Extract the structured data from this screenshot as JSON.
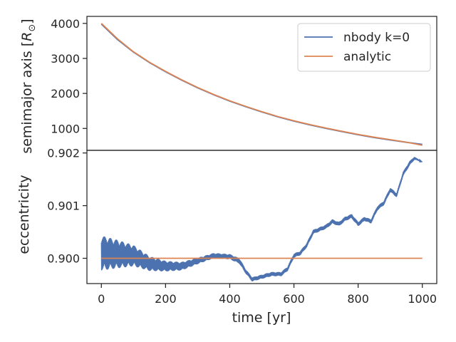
{
  "chart_data": [
    {
      "panel": "top",
      "type": "line",
      "ylabel_text": "semimajor axis [",
      "ylabel_symbol": "R",
      "ylabel_subscript": "⊙",
      "ylabel_close": "]",
      "xlim": [
        -45,
        1045
      ],
      "ylim": [
        375,
        4200
      ],
      "yticks": [
        1000,
        2000,
        3000,
        4000
      ],
      "ytick_labels": [
        "1000",
        "2000",
        "3000",
        "4000"
      ],
      "legend": {
        "position": "top-right",
        "entries": [
          "nbody k=0",
          "analytic"
        ]
      },
      "series": [
        {
          "name": "nbody k=0",
          "color": "#4c72b0",
          "x": [
            0,
            50,
            100,
            150,
            200,
            250,
            300,
            350,
            400,
            450,
            500,
            550,
            600,
            650,
            700,
            750,
            800,
            850,
            900,
            950,
            1000
          ],
          "y": [
            3980,
            3540,
            3180,
            2880,
            2620,
            2380,
            2160,
            1960,
            1780,
            1620,
            1470,
            1330,
            1210,
            1100,
            1000,
            910,
            820,
            740,
            670,
            605,
            545
          ]
        },
        {
          "name": "analytic",
          "color": "#dd8452",
          "x": [
            0,
            50,
            100,
            150,
            200,
            250,
            300,
            350,
            400,
            450,
            500,
            550,
            600,
            650,
            700,
            750,
            800,
            850,
            900,
            950,
            1000
          ],
          "y": [
            4000,
            3560,
            3190,
            2890,
            2630,
            2390,
            2170,
            1970,
            1790,
            1630,
            1480,
            1340,
            1220,
            1110,
            1010,
            920,
            830,
            750,
            680,
            610,
            520
          ]
        }
      ]
    },
    {
      "panel": "bottom",
      "type": "line",
      "xlabel": "time [yr]",
      "ylabel": "eccentricity",
      "xlim": [
        -45,
        1045
      ],
      "ylim": [
        0.89952,
        0.90205
      ],
      "xticks": [
        0,
        200,
        400,
        600,
        800,
        1000
      ],
      "xtick_labels": [
        "0",
        "200",
        "400",
        "600",
        "800",
        "1000"
      ],
      "yticks": [
        0.9,
        0.901,
        0.902
      ],
      "ytick_labels": [
        "0.900",
        "0.901",
        "0.902"
      ],
      "series": [
        {
          "name": "nbody k=0",
          "color": "#4c72b0",
          "x": [
            0,
            50,
            100,
            150,
            200,
            250,
            300,
            350,
            400,
            430,
            450,
            470,
            500,
            530,
            560,
            580,
            600,
            620,
            640,
            660,
            680,
            700,
            720,
            740,
            760,
            780,
            800,
            820,
            840,
            860,
            880,
            900,
            920,
            940,
            960,
            975,
            1000
          ],
          "y": [
            0.9001,
            0.90008,
            0.90005,
            0.8999,
            0.89985,
            0.89985,
            0.89995,
            0.90005,
            0.90003,
            0.89995,
            0.89975,
            0.8996,
            0.89965,
            0.8997,
            0.8997,
            0.8998,
            0.90005,
            0.9001,
            0.90025,
            0.9005,
            0.90055,
            0.9006,
            0.9007,
            0.90065,
            0.90075,
            0.9008,
            0.90065,
            0.90075,
            0.9007,
            0.90095,
            0.90105,
            0.9013,
            0.9012,
            0.9016,
            0.9018,
            0.9019,
            0.90183
          ],
          "amplitude": [
            0.00033,
            0.00027,
            0.0002,
            0.00014,
            0.0001,
            8e-05,
            6e-05,
            5e-05,
            5e-05,
            5e-05,
            4e-05,
            4e-05,
            4e-05,
            4e-05,
            4e-05,
            4e-05,
            4e-05,
            4e-05,
            4e-05,
            4e-05,
            4e-05,
            4e-05,
            4e-05,
            4e-05,
            4e-05,
            4e-05,
            4e-05,
            4e-05,
            4e-05,
            4e-05,
            4e-05,
            4e-05,
            4e-05,
            4e-05,
            4e-05,
            3e-05,
            0.0
          ]
        },
        {
          "name": "analytic",
          "color": "#dd8452",
          "x": [
            0,
            1000
          ],
          "y": [
            0.9,
            0.9
          ]
        }
      ]
    }
  ]
}
